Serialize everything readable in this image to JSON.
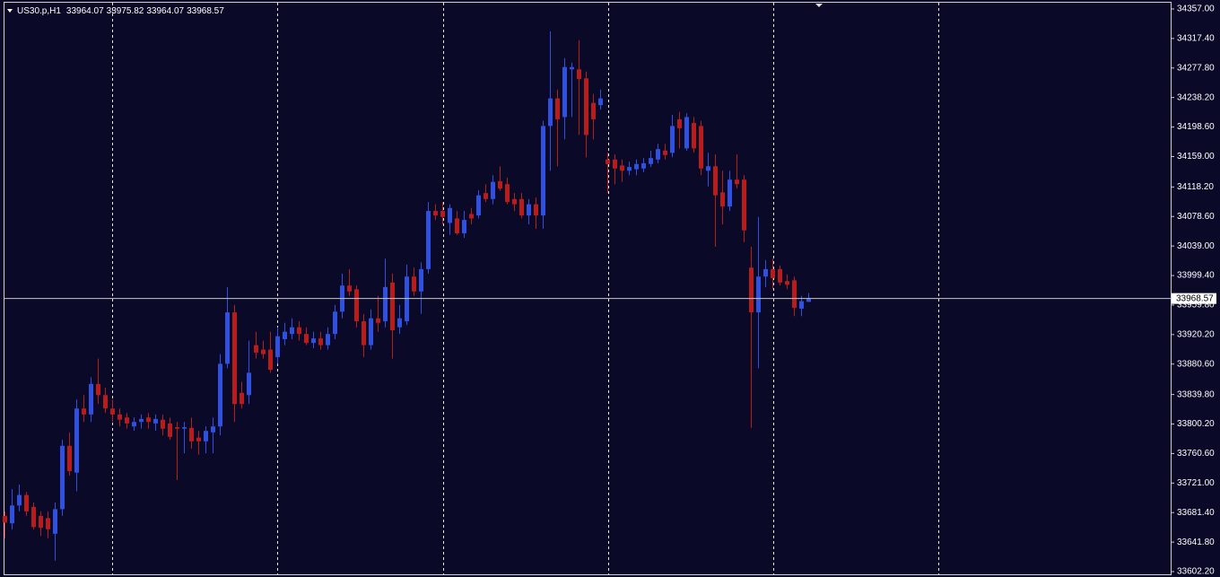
{
  "chart_data": {
    "type": "candlestick",
    "symbol": "US30.p,H1",
    "bull_color": "#3050e0",
    "bear_color": "#b81c1c",
    "ylim": [
      33598.6,
      34365.4
    ],
    "yticks": [
      {
        "value": 34357,
        "label": "34357.00"
      },
      {
        "value": 34317.4,
        "label": "34317.40"
      },
      {
        "value": 34277.8,
        "label": "34277.80"
      },
      {
        "value": 34238.2,
        "label": "34238.20"
      },
      {
        "value": 34198.6,
        "label": "34198.60"
      },
      {
        "value": 34159,
        "label": "34159.00"
      },
      {
        "value": 34118.2,
        "label": "34118.20"
      },
      {
        "value": 34078.6,
        "label": "34078.60"
      },
      {
        "value": 34039,
        "label": "34039.00"
      },
      {
        "value": 33999.4,
        "label": "33999.40"
      },
      {
        "value": 33959.8,
        "label": "33959.80"
      },
      {
        "value": 33920.2,
        "label": "33920.20"
      },
      {
        "value": 33880.6,
        "label": "33880.60"
      },
      {
        "value": 33839.8,
        "label": "33839.80"
      },
      {
        "value": 33800.2,
        "label": "33800.20"
      },
      {
        "value": 33760.6,
        "label": "33760.60"
      },
      {
        "value": 33721,
        "label": "33721.00"
      },
      {
        "value": 33681.4,
        "label": "33681.40"
      },
      {
        "value": 33641.8,
        "label": "33641.80"
      },
      {
        "value": 33602.2,
        "label": "33602.20"
      }
    ],
    "open": [
      33677,
      33667,
      33691,
      33705,
      33689,
      33677,
      33674,
      33653,
      33686,
      33771,
      33735,
      33821,
      33813,
      33854,
      33839,
      33821,
      33813,
      33809,
      33797,
      33803,
      33809,
      33801,
      33806,
      33801,
      33796,
      33794,
      33795,
      33782,
      33777,
      33789,
      33797,
      33881,
      33950,
      33842,
      33839,
      33906,
      33900,
      33900,
      33890,
      33914,
      33921,
      33930,
      33921,
      33909,
      33915,
      33906,
      33921,
      33951,
      33986,
      33981,
      33938,
      33906,
      33942,
      33938,
      33990,
      33930,
      33938,
      33998,
      33978,
      34008,
      34086,
      34086,
      34070,
      34076,
      34056,
      34082,
      34080,
      34110,
      34102,
      34126,
      34122,
      34102,
      34102,
      34080,
      34095,
      34080,
      34200,
      34237,
      34212,
      34276,
      34276,
      34264,
      34231,
      34228,
      34155,
      34155,
      34147,
      34140,
      34142,
      34143,
      34149,
      34155,
      34167,
      34164,
      34209,
      34170,
      34204,
      34200,
      34140,
      34146,
      34111,
      34092,
      34128,
      34128,
      34010,
      33950,
      33998,
      34008,
      34008,
      33992,
      33993,
      33955,
      33964.07
    ],
    "high": [
      33683,
      33713,
      33719,
      33709,
      33695,
      33683,
      33683,
      33695,
      33779,
      33789,
      33833,
      33839,
      33863,
      33888,
      33849,
      33833,
      33821,
      33815,
      33809,
      33813,
      33815,
      33813,
      33813,
      33809,
      33803,
      33803,
      33809,
      33791,
      33797,
      33809,
      33894,
      33984,
      33960,
      33857,
      33912,
      33924,
      33912,
      33924,
      33930,
      33936,
      33942,
      33938,
      33930,
      33924,
      33924,
      33930,
      33960,
      34002,
      34008,
      33986,
      33948,
      33954,
      33972,
      34022,
      34002,
      33960,
      34014,
      34010,
      34017,
      34098,
      34095,
      34098,
      34095,
      34086,
      34086,
      34090,
      34114,
      34122,
      34134,
      34146,
      34131,
      34110,
      34110,
      34102,
      34104,
      34207,
      34327,
      34249,
      34291,
      34285,
      34315,
      34273,
      34243,
      34249,
      34164,
      34162,
      34155,
      34152,
      34155,
      34157,
      34167,
      34176,
      34176,
      34215,
      34219,
      34217,
      34212,
      34207,
      34164,
      34162,
      34140,
      34140,
      34162,
      34134,
      34038,
      34078,
      34020,
      34022,
      34013,
      34001,
      33998,
      33972,
      33975.82
    ],
    "low": [
      33647,
      33659,
      33683,
      33677,
      33659,
      33650,
      33647,
      33617,
      33677,
      33731,
      33710,
      33803,
      33803,
      33827,
      33815,
      33803,
      33797,
      33794,
      33791,
      33794,
      33794,
      33791,
      33785,
      33779,
      33725,
      33761,
      33767,
      33759,
      33761,
      33761,
      33785,
      33875,
      33803,
      33821,
      33827,
      33888,
      33888,
      33869,
      33881,
      33906,
      33914,
      33912,
      33906,
      33902,
      33900,
      33900,
      33914,
      33942,
      33972,
      33930,
      33890,
      33900,
      33924,
      33930,
      33888,
      33921,
      33933,
      33972,
      33948,
      34002,
      34074,
      34068,
      34054,
      34054,
      34050,
      34068,
      34076,
      34098,
      34095,
      34113,
      34095,
      34086,
      34076,
      34068,
      34062,
      34062,
      34140,
      34146,
      34182,
      34212,
      34188,
      34158,
      34182,
      34222,
      34110,
      34122,
      34125,
      34134,
      34134,
      34138,
      34145,
      34150,
      34155,
      34158,
      34170,
      34167,
      34164,
      34134,
      34119,
      34038,
      34068,
      34086,
      34116,
      34044,
      33795,
      33875,
      33984,
      33981,
      33986,
      33981,
      33945,
      33945,
      33964.07
    ],
    "close": [
      33668,
      33691,
      33705,
      33683,
      33662,
      33661,
      33659,
      33686,
      33771,
      33737,
      33821,
      33813,
      33854,
      33839,
      33821,
      33813,
      33806,
      33801,
      33803,
      33807,
      33803,
      33807,
      33794,
      33783,
      33794,
      33796,
      33777,
      33777,
      33791,
      33797,
      33881,
      33950,
      33827,
      33827,
      33869,
      33896,
      33894,
      33873,
      33918,
      33924,
      33930,
      33921,
      33909,
      33915,
      33906,
      33921,
      33951,
      33986,
      33978,
      33938,
      33906,
      33942,
      33936,
      33984,
      33926,
      33942,
      33998,
      33978,
      34008,
      34086,
      34080,
      34078,
      34090,
      34056,
      34074,
      34076,
      34107,
      34102,
      34125,
      34116,
      34098,
      34095,
      34080,
      34095,
      34080,
      34200,
      34237,
      34209,
      34279,
      34279,
      34263,
      34188,
      34209,
      34237,
      34149,
      34143,
      34140,
      34145,
      34149,
      34150,
      34157,
      34169,
      34161,
      34200,
      34197,
      34212,
      34170,
      34143,
      34146,
      34107,
      34092,
      34128,
      34122,
      34060,
      33950,
      33998,
      34008,
      33996,
      33990,
      33987,
      33956,
      33965,
      33968.57
    ]
  }
}
